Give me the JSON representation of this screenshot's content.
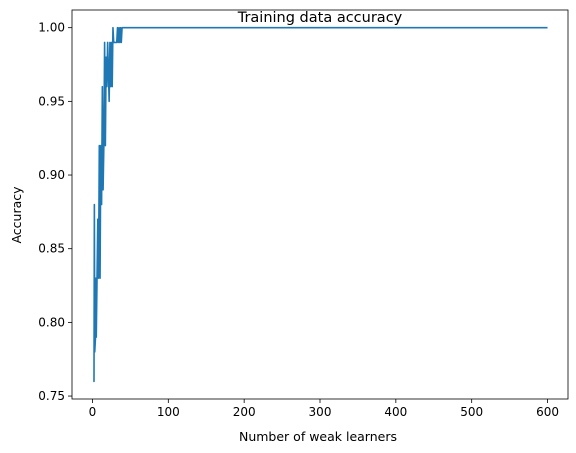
{
  "chart_data": {
    "type": "line",
    "title": "Training data accuracy",
    "xlabel": "Number of weak learners",
    "ylabel": "Accuracy",
    "xlim": [
      -27,
      627
    ],
    "ylim": [
      0.748,
      1.012
    ],
    "xticks": [
      0,
      100,
      200,
      300,
      400,
      500,
      600
    ],
    "yticks": [
      0.75,
      0.8,
      0.85,
      0.9,
      0.95,
      1.0
    ],
    "ytick_labels": [
      "0.75",
      "0.80",
      "0.85",
      "0.90",
      "0.95",
      "1.00"
    ],
    "grid": false,
    "series": [
      {
        "color": "#1f77b4",
        "x": [
          1,
          2,
          2.5,
          3,
          4,
          4.5,
          5,
          6,
          7,
          8,
          9,
          10,
          11,
          12,
          13,
          14,
          15,
          16,
          17,
          18,
          19,
          20,
          21,
          22,
          23,
          24,
          25,
          26,
          27,
          28,
          29,
          30,
          31,
          32,
          33,
          34,
          35,
          36,
          37,
          38,
          39,
          40,
          41,
          42,
          43,
          45,
          50,
          100,
          200,
          300,
          400,
          500,
          600
        ],
        "y": [
          0.76,
          0.76,
          0.88,
          0.78,
          0.79,
          0.83,
          0.79,
          0.83,
          0.87,
          0.83,
          0.92,
          0.83,
          0.92,
          0.88,
          0.96,
          0.89,
          0.92,
          0.99,
          0.92,
          0.98,
          0.96,
          0.99,
          0.97,
          0.95,
          0.99,
          0.96,
          0.99,
          0.96,
          1.0,
          0.99,
          0.99,
          0.99,
          0.99,
          0.99,
          1.0,
          0.99,
          1.0,
          0.99,
          1.0,
          0.99,
          1.0,
          1.0,
          1.0,
          1.0,
          1.0,
          1.0,
          1.0,
          1.0,
          1.0,
          1.0,
          1.0,
          1.0,
          1.0
        ]
      }
    ]
  }
}
